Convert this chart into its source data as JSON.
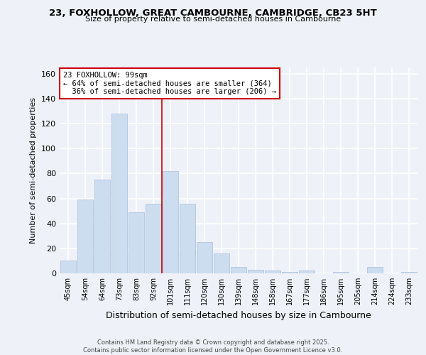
{
  "title1": "23, FOXHOLLOW, GREAT CAMBOURNE, CAMBRIDGE, CB23 5HT",
  "title2": "Size of property relative to semi-detached houses in Cambourne",
  "xlabel": "Distribution of semi-detached houses by size in Cambourne",
  "ylabel": "Number of semi-detached properties",
  "categories": [
    "45sqm",
    "54sqm",
    "64sqm",
    "73sqm",
    "83sqm",
    "92sqm",
    "101sqm",
    "111sqm",
    "120sqm",
    "130sqm",
    "139sqm",
    "148sqm",
    "158sqm",
    "167sqm",
    "177sqm",
    "186sqm",
    "195sqm",
    "205sqm",
    "214sqm",
    "224sqm",
    "233sqm"
  ],
  "values": [
    10,
    59,
    75,
    128,
    49,
    56,
    82,
    56,
    25,
    16,
    5,
    3,
    2,
    1,
    2,
    0,
    1,
    0,
    5,
    0,
    1
  ],
  "bar_color": "#ccddf0",
  "bar_edge_color": "#aabbdd",
  "reference_line_x": 5.5,
  "annotation_line1": "23 FOXHOLLOW: 99sqm",
  "annotation_line2": "← 64% of semi-detached houses are smaller (364)",
  "annotation_line3": "  36% of semi-detached houses are larger (206) →",
  "annotation_box_color": "#ffffff",
  "annotation_box_edge_color": "#cc0000",
  "ref_line_color": "#cc0000",
  "ylim": [
    0,
    165
  ],
  "yticks": [
    0,
    20,
    40,
    60,
    80,
    100,
    120,
    140,
    160
  ],
  "footer_text": "Contains HM Land Registry data © Crown copyright and database right 2025.\nContains public sector information licensed under the Open Government Licence v3.0.",
  "background_color": "#eef2f8",
  "grid_color": "#ffffff"
}
